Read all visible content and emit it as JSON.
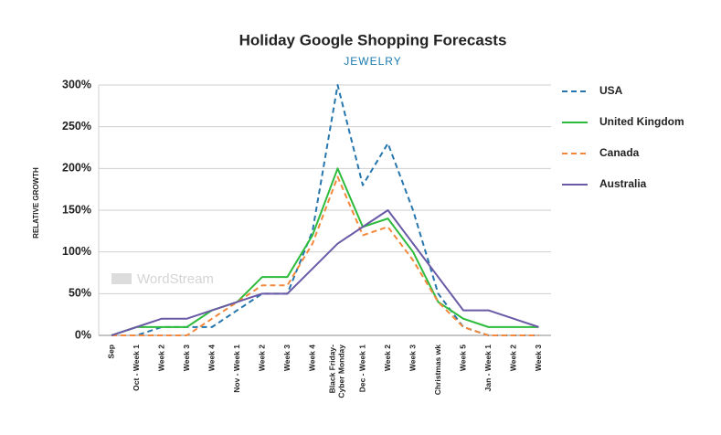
{
  "chart_data": {
    "type": "line",
    "title": "Holiday Google Shopping Forecasts",
    "subtitle": "JEWELRY",
    "y_label": "RELATIVE GROWTH",
    "watermark": "WordStream",
    "categories": [
      "Sep",
      "Oct - Week 1",
      "Week 2",
      "Week 3",
      "Week 4",
      "Nov - Week 1",
      "Week 2",
      "Week 3",
      "Week 4",
      "Black Friday- Cyber Monday",
      "Dec - Week 1",
      "Week 2",
      "Week 3",
      "Christmas wk",
      "Week 5",
      "Jan - Week 1",
      "Week 2",
      "Week 3"
    ],
    "series": [
      {
        "name": "USA",
        "color": "#2676ad",
        "dashed": true,
        "values": [
          0,
          0,
          10,
          10,
          10,
          30,
          50,
          50,
          125,
          300,
          180,
          230,
          150,
          50,
          10,
          0,
          0,
          0
        ]
      },
      {
        "name": "United Kingdom",
        "color": "#2dbb3c",
        "dashed": false,
        "values": [
          0,
          10,
          10,
          10,
          30,
          40,
          70,
          70,
          120,
          200,
          130,
          140,
          100,
          40,
          20,
          10,
          10,
          10
        ]
      },
      {
        "name": "Canada",
        "color": "#f4873a",
        "dashed": true,
        "values": [
          0,
          0,
          0,
          0,
          20,
          40,
          60,
          60,
          110,
          190,
          120,
          130,
          90,
          40,
          10,
          0,
          0,
          0
        ]
      },
      {
        "name": "Australia",
        "color": "#6a5aa6",
        "dashed": false,
        "values": [
          0,
          10,
          20,
          20,
          30,
          40,
          50,
          50,
          80,
          110,
          130,
          150,
          110,
          70,
          30,
          30,
          20,
          10
        ]
      }
    ],
    "ylim": [
      0,
      300
    ],
    "yticks": [
      {
        "value": 0,
        "label": "0%"
      },
      {
        "value": 50,
        "label": "50%"
      },
      {
        "value": 100,
        "label": "100%"
      },
      {
        "value": 150,
        "label": "150%"
      },
      {
        "value": 200,
        "label": "200%"
      },
      {
        "value": 250,
        "label": "250%"
      },
      {
        "value": 300,
        "label": "300%"
      }
    ],
    "grid": true
  }
}
